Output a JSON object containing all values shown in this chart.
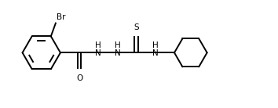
{
  "background_color": "#ffffff",
  "line_color": "#000000",
  "text_color": "#000000",
  "line_width": 1.4,
  "font_size": 7.5,
  "figsize": [
    3.54,
    1.38
  ],
  "dpi": 100,
  "xlim": [
    0,
    10.5
  ],
  "ylim": [
    -1.6,
    1.8
  ]
}
